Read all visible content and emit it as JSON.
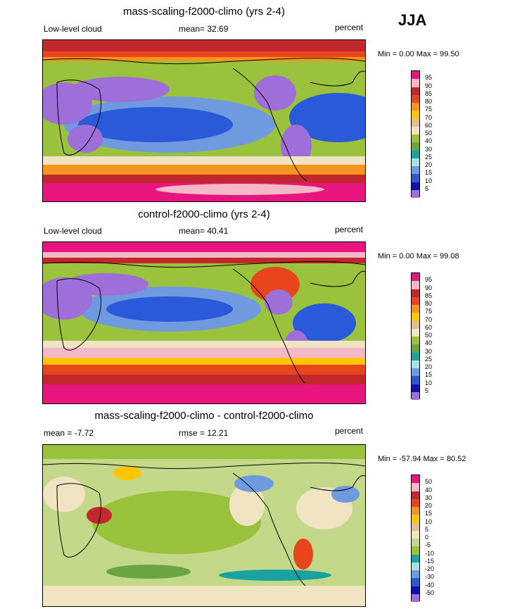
{
  "season": "JJA",
  "panels": [
    {
      "title": "mass-scaling-f2000-climo (yrs 2-4)",
      "left": "Low-level cloud",
      "center": "mean=  32.69",
      "right": "percent",
      "minmax": "Min =   0.00 Max =  99.50",
      "scale": "abs",
      "levels": [
        "95",
        "90",
        "85",
        "80",
        "75",
        "70",
        "60",
        "50",
        "40",
        "30",
        "25",
        "20",
        "15",
        "10",
        "5"
      ]
    },
    {
      "title": "control-f2000-climo (yrs 2-4)",
      "left": "Low-level cloud",
      "center": "mean=  40.41",
      "right": "percent",
      "minmax": "Min =   0.00 Max =  99.08",
      "scale": "abs",
      "levels": [
        "95",
        "90",
        "85",
        "80",
        "75",
        "70",
        "60",
        "50",
        "40",
        "30",
        "25",
        "20",
        "15",
        "10",
        "5"
      ]
    },
    {
      "title": "mass-scaling-f2000-climo - control-f2000-climo",
      "left": "mean =  -7.72",
      "center": "rmse =  12.21",
      "right": "percent",
      "minmax": "Min = -57.94 Max =  80.52",
      "scale": "diff",
      "levels": [
        "50",
        "40",
        "30",
        "20",
        "15",
        "10",
        "5",
        "0",
        "-5",
        "-10",
        "-15",
        "-20",
        "-30",
        "-40",
        "-50"
      ]
    }
  ],
  "colors": {
    "abs": [
      "#e8157e",
      "#f4b8c8",
      "#c1272d",
      "#e8451d",
      "#f7941d",
      "#fcc700",
      "#dfc08f",
      "#f1e4c2",
      "#9ac23c",
      "#6aa542",
      "#19a2a0",
      "#a8e0e8",
      "#6f9ae0",
      "#2a5ad9",
      "#1010b4",
      "#9f6fd9"
    ],
    "diff": [
      "#e8157e",
      "#f4b8c8",
      "#c1272d",
      "#e8451d",
      "#f7941d",
      "#fcc700",
      "#dfc08f",
      "#f1e4c2",
      "#c4d88a",
      "#9ac23c",
      "#19a2a0",
      "#a8e0e8",
      "#6f9ae0",
      "#2a5ad9",
      "#1010b4",
      "#9f6fd9"
    ]
  }
}
